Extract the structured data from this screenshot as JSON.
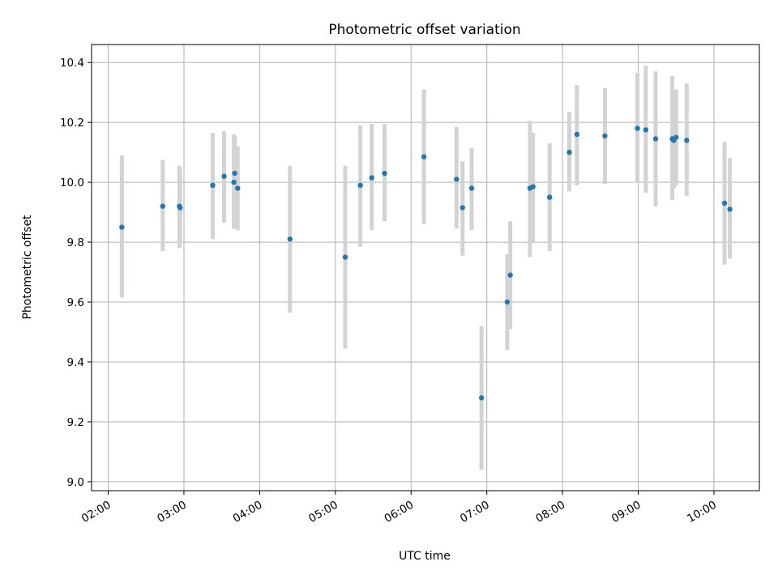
{
  "chart_data": {
    "type": "scatter",
    "title": "Photometric offset variation",
    "xlabel": "UTC time",
    "ylabel": "Photometric offset",
    "x_unit": "hours",
    "xlim": [
      1.78,
      10.6
    ],
    "ylim": [
      8.97,
      10.46
    ],
    "x_ticks": [
      {
        "value": 2,
        "label": "02:00"
      },
      {
        "value": 3,
        "label": "03:00"
      },
      {
        "value": 4,
        "label": "04:00"
      },
      {
        "value": 5,
        "label": "05:00"
      },
      {
        "value": 6,
        "label": "06:00"
      },
      {
        "value": 7,
        "label": "07:00"
      },
      {
        "value": 8,
        "label": "08:00"
      },
      {
        "value": 9,
        "label": "09:00"
      },
      {
        "value": 10,
        "label": "10:00"
      }
    ],
    "y_ticks": [
      {
        "value": 9.0,
        "label": "9.0"
      },
      {
        "value": 9.2,
        "label": "9.2"
      },
      {
        "value": 9.4,
        "label": "9.4"
      },
      {
        "value": 9.6,
        "label": "9.6"
      },
      {
        "value": 9.8,
        "label": "9.8"
      },
      {
        "value": 10.0,
        "label": "10.0"
      },
      {
        "value": 10.2,
        "label": "10.2"
      },
      {
        "value": 10.4,
        "label": "10.4"
      }
    ],
    "grid": true,
    "colors": {
      "point": "#1f77b4",
      "errorbar": "#d3d3d3",
      "grid": "#b0b0b0"
    },
    "points": [
      {
        "x": 2.18,
        "y": 9.85,
        "ylo": 9.615,
        "yhi": 10.09
      },
      {
        "x": 2.72,
        "y": 9.92,
        "ylo": 9.77,
        "yhi": 10.075
      },
      {
        "x": 2.94,
        "y": 9.92,
        "ylo": 9.78,
        "yhi": 10.055
      },
      {
        "x": 2.95,
        "y": 9.915,
        "ylo": 9.79,
        "yhi": 10.04
      },
      {
        "x": 3.38,
        "y": 9.99,
        "ylo": 9.81,
        "yhi": 10.165
      },
      {
        "x": 3.53,
        "y": 10.02,
        "ylo": 9.865,
        "yhi": 10.17
      },
      {
        "x": 3.66,
        "y": 10.0,
        "ylo": 9.845,
        "yhi": 10.16
      },
      {
        "x": 3.67,
        "y": 10.03,
        "ylo": 9.9,
        "yhi": 10.155
      },
      {
        "x": 3.71,
        "y": 9.98,
        "ylo": 9.84,
        "yhi": 10.12
      },
      {
        "x": 4.4,
        "y": 9.81,
        "ylo": 9.565,
        "yhi": 10.055
      },
      {
        "x": 5.13,
        "y": 9.75,
        "ylo": 9.445,
        "yhi": 10.055
      },
      {
        "x": 5.33,
        "y": 9.99,
        "ylo": 9.785,
        "yhi": 10.19
      },
      {
        "x": 5.48,
        "y": 10.015,
        "ylo": 9.84,
        "yhi": 10.195
      },
      {
        "x": 5.65,
        "y": 10.03,
        "ylo": 9.87,
        "yhi": 10.195
      },
      {
        "x": 6.17,
        "y": 10.085,
        "ylo": 9.86,
        "yhi": 10.31
      },
      {
        "x": 6.6,
        "y": 10.01,
        "ylo": 9.845,
        "yhi": 10.185
      },
      {
        "x": 6.68,
        "y": 9.915,
        "ylo": 9.755,
        "yhi": 10.07
      },
      {
        "x": 6.8,
        "y": 9.98,
        "ylo": 9.84,
        "yhi": 10.115
      },
      {
        "x": 6.93,
        "y": 9.28,
        "ylo": 9.04,
        "yhi": 9.52
      },
      {
        "x": 7.27,
        "y": 9.6,
        "ylo": 9.44,
        "yhi": 9.76
      },
      {
        "x": 7.31,
        "y": 9.69,
        "ylo": 9.51,
        "yhi": 9.87
      },
      {
        "x": 7.57,
        "y": 9.98,
        "ylo": 9.75,
        "yhi": 10.205
      },
      {
        "x": 7.61,
        "y": 9.985,
        "ylo": 9.8,
        "yhi": 10.165
      },
      {
        "x": 7.83,
        "y": 9.95,
        "ylo": 9.77,
        "yhi": 10.13
      },
      {
        "x": 8.09,
        "y": 10.1,
        "ylo": 9.97,
        "yhi": 10.235
      },
      {
        "x": 8.19,
        "y": 10.16,
        "ylo": 9.99,
        "yhi": 10.325
      },
      {
        "x": 8.56,
        "y": 10.155,
        "ylo": 9.995,
        "yhi": 10.315
      },
      {
        "x": 8.99,
        "y": 10.18,
        "ylo": 10.0,
        "yhi": 10.365
      },
      {
        "x": 9.1,
        "y": 10.175,
        "ylo": 9.965,
        "yhi": 10.39
      },
      {
        "x": 9.23,
        "y": 10.145,
        "ylo": 9.92,
        "yhi": 10.37
      },
      {
        "x": 9.45,
        "y": 10.145,
        "ylo": 9.94,
        "yhi": 10.355
      },
      {
        "x": 9.47,
        "y": 10.14,
        "ylo": 9.98,
        "yhi": 10.31
      },
      {
        "x": 9.5,
        "y": 10.15,
        "ylo": 9.99,
        "yhi": 10.31
      },
      {
        "x": 9.64,
        "y": 10.14,
        "ylo": 9.955,
        "yhi": 10.33
      },
      {
        "x": 10.14,
        "y": 9.93,
        "ylo": 9.725,
        "yhi": 10.135
      },
      {
        "x": 10.21,
        "y": 9.91,
        "ylo": 9.745,
        "yhi": 10.08
      }
    ]
  }
}
